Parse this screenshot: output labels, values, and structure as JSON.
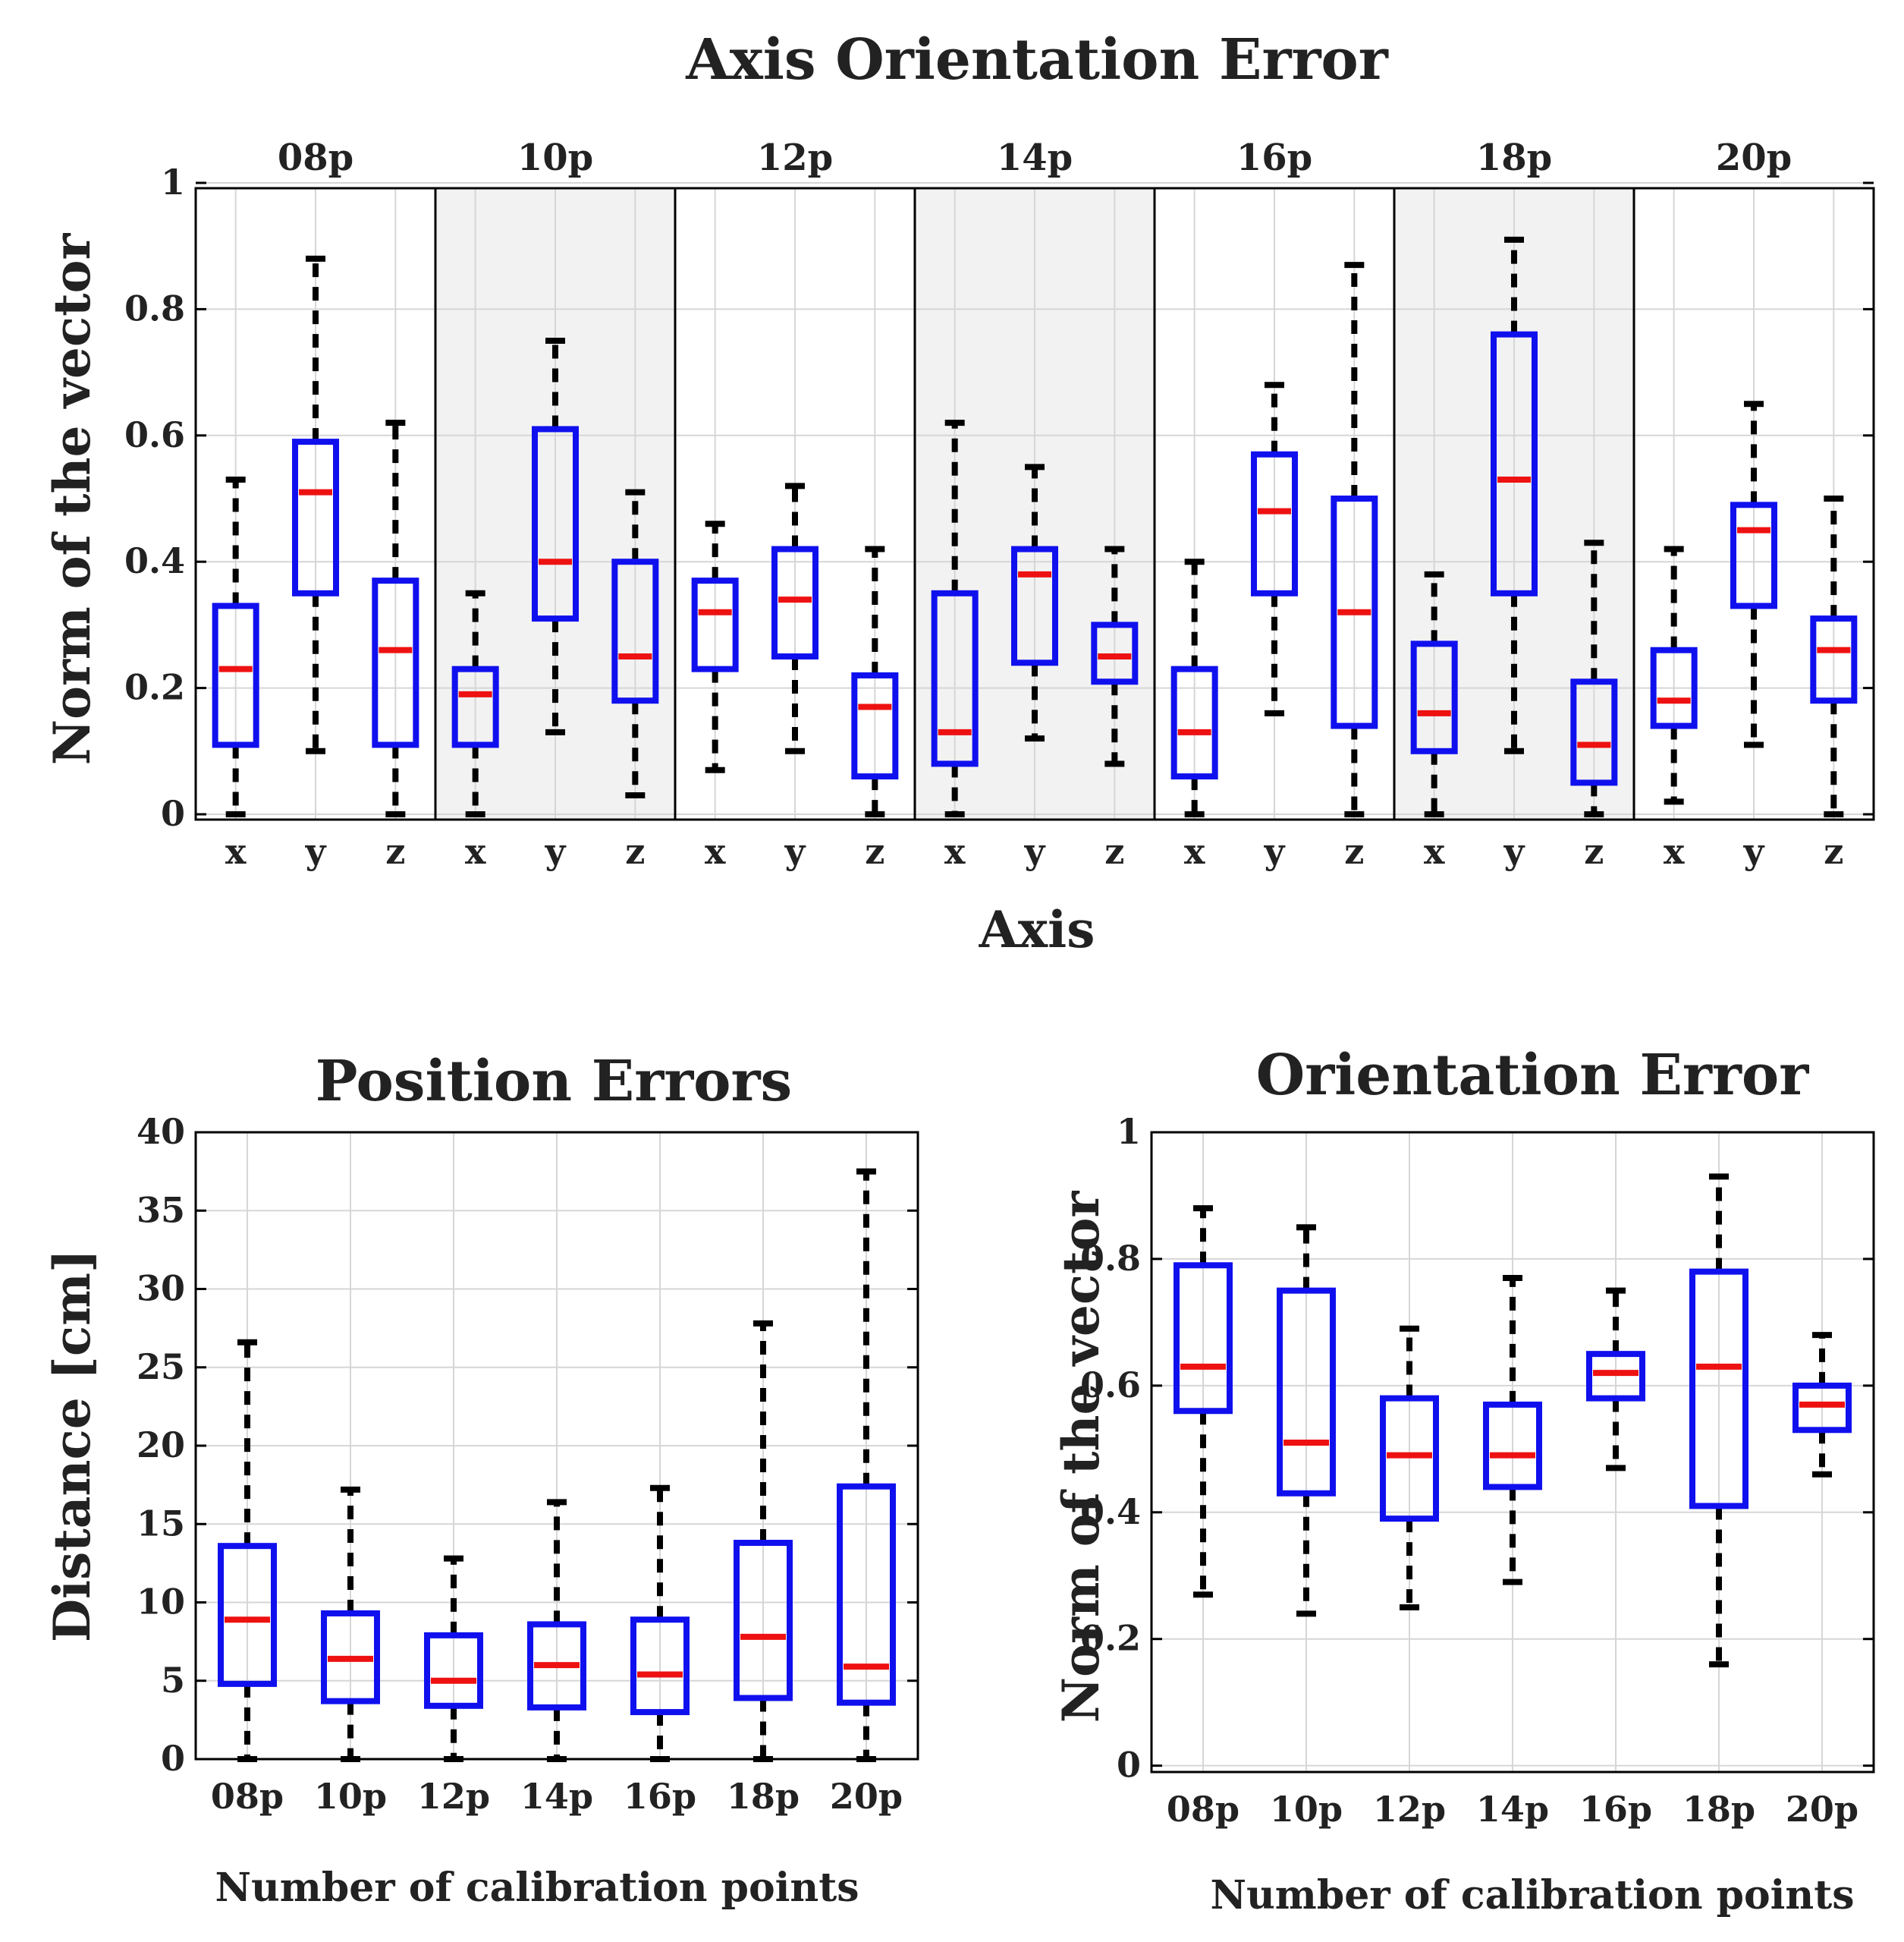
{
  "colors": {
    "box": "#1010ee",
    "median": "#ee1111",
    "whisker": "#000000",
    "grid": "#d6d6d6",
    "shade": "#f2f2f2"
  },
  "chart_data": [
    {
      "id": "top",
      "type": "boxplot",
      "title": "Axis Orientation Error",
      "xlabel": "Axis",
      "ylabel": "Norm of the vector",
      "ylim": [
        0,
        1
      ],
      "yticks": [
        0,
        0.2,
        0.4,
        0.6,
        0.8,
        1
      ],
      "ytick_labels": [
        "0",
        "0.2",
        "0.4",
        "0.6",
        "0.8",
        "1"
      ],
      "shaded_groups": [
        "10p",
        "14p",
        "18p"
      ],
      "groups": [
        {
          "label": "08p",
          "boxes": [
            {
              "cat": "x",
              "min": 0.0,
              "q1": 0.11,
              "median": 0.23,
              "q3": 0.33,
              "max": 0.53
            },
            {
              "cat": "y",
              "min": 0.1,
              "q1": 0.35,
              "median": 0.51,
              "q3": 0.59,
              "max": 0.88
            },
            {
              "cat": "z",
              "min": 0.0,
              "q1": 0.11,
              "median": 0.26,
              "q3": 0.37,
              "max": 0.62
            }
          ]
        },
        {
          "label": "10p",
          "boxes": [
            {
              "cat": "x",
              "min": 0.0,
              "q1": 0.11,
              "median": 0.19,
              "q3": 0.23,
              "max": 0.35
            },
            {
              "cat": "y",
              "min": 0.13,
              "q1": 0.31,
              "median": 0.4,
              "q3": 0.61,
              "max": 0.75
            },
            {
              "cat": "z",
              "min": 0.03,
              "q1": 0.18,
              "median": 0.25,
              "q3": 0.4,
              "max": 0.51
            }
          ]
        },
        {
          "label": "12p",
          "boxes": [
            {
              "cat": "x",
              "min": 0.07,
              "q1": 0.23,
              "median": 0.32,
              "q3": 0.37,
              "max": 0.46
            },
            {
              "cat": "y",
              "min": 0.1,
              "q1": 0.25,
              "median": 0.34,
              "q3": 0.42,
              "max": 0.52
            },
            {
              "cat": "z",
              "min": 0.0,
              "q1": 0.06,
              "median": 0.17,
              "q3": 0.22,
              "max": 0.42
            }
          ]
        },
        {
          "label": "14p",
          "boxes": [
            {
              "cat": "x",
              "min": 0.0,
              "q1": 0.08,
              "median": 0.13,
              "q3": 0.35,
              "max": 0.62
            },
            {
              "cat": "y",
              "min": 0.12,
              "q1": 0.24,
              "median": 0.38,
              "q3": 0.42,
              "max": 0.55
            },
            {
              "cat": "z",
              "min": 0.08,
              "q1": 0.21,
              "median": 0.25,
              "q3": 0.3,
              "max": 0.42
            }
          ]
        },
        {
          "label": "16p",
          "boxes": [
            {
              "cat": "x",
              "min": 0.0,
              "q1": 0.06,
              "median": 0.13,
              "q3": 0.23,
              "max": 0.4
            },
            {
              "cat": "y",
              "min": 0.16,
              "q1": 0.35,
              "median": 0.48,
              "q3": 0.57,
              "max": 0.68
            },
            {
              "cat": "z",
              "min": 0.0,
              "q1": 0.14,
              "median": 0.32,
              "q3": 0.5,
              "max": 0.87
            }
          ]
        },
        {
          "label": "18p",
          "boxes": [
            {
              "cat": "x",
              "min": 0.0,
              "q1": 0.1,
              "median": 0.16,
              "q3": 0.27,
              "max": 0.38
            },
            {
              "cat": "y",
              "min": 0.1,
              "q1": 0.35,
              "median": 0.53,
              "q3": 0.76,
              "max": 0.91
            },
            {
              "cat": "z",
              "min": 0.0,
              "q1": 0.05,
              "median": 0.11,
              "q3": 0.21,
              "max": 0.43
            }
          ]
        },
        {
          "label": "20p",
          "boxes": [
            {
              "cat": "x",
              "min": 0.02,
              "q1": 0.14,
              "median": 0.18,
              "q3": 0.26,
              "max": 0.42
            },
            {
              "cat": "y",
              "min": 0.11,
              "q1": 0.33,
              "median": 0.45,
              "q3": 0.49,
              "max": 0.65
            },
            {
              "cat": "z",
              "min": 0.0,
              "q1": 0.18,
              "median": 0.26,
              "q3": 0.31,
              "max": 0.5
            }
          ]
        }
      ]
    },
    {
      "id": "position",
      "type": "boxplot",
      "title": "Position Errors",
      "xlabel": "Number of calibration points",
      "ylabel": "Distance [cm]",
      "ylim": [
        0,
        40
      ],
      "yticks": [
        0,
        5,
        10,
        15,
        20,
        25,
        30,
        35,
        40
      ],
      "ytick_labels": [
        "0",
        "5",
        "10",
        "15",
        "20",
        "25",
        "30",
        "35",
        "40"
      ],
      "boxes": [
        {
          "cat": "08p",
          "min": 0.0,
          "q1": 4.8,
          "median": 8.9,
          "q3": 13.6,
          "max": 26.6
        },
        {
          "cat": "10p",
          "min": 0.0,
          "q1": 3.7,
          "median": 6.4,
          "q3": 9.3,
          "max": 17.2
        },
        {
          "cat": "12p",
          "min": 0.0,
          "q1": 3.4,
          "median": 5.0,
          "q3": 7.9,
          "max": 12.8
        },
        {
          "cat": "14p",
          "min": 0.0,
          "q1": 3.3,
          "median": 6.0,
          "q3": 8.6,
          "max": 16.4
        },
        {
          "cat": "16p",
          "min": 0.0,
          "q1": 3.0,
          "median": 5.4,
          "q3": 8.9,
          "max": 17.3
        },
        {
          "cat": "18p",
          "min": 0.0,
          "q1": 3.9,
          "median": 7.8,
          "q3": 13.8,
          "max": 27.8
        },
        {
          "cat": "20p",
          "min": 0.0,
          "q1": 3.6,
          "median": 5.9,
          "q3": 17.4,
          "max": 37.5
        }
      ]
    },
    {
      "id": "orientation",
      "type": "boxplot",
      "title": "Orientation Error",
      "xlabel": "Number of calibration points",
      "ylabel": "Norm of the vector",
      "ylim": [
        -0.01,
        1
      ],
      "yticks": [
        0,
        0.2,
        0.4,
        0.6,
        0.8,
        1
      ],
      "ytick_labels": [
        "0",
        "0.2",
        "0.4",
        "0.6",
        "0.8",
        "1"
      ],
      "boxes": [
        {
          "cat": "08p",
          "min": 0.27,
          "q1": 0.56,
          "median": 0.63,
          "q3": 0.79,
          "max": 0.88
        },
        {
          "cat": "10p",
          "min": 0.24,
          "q1": 0.43,
          "median": 0.51,
          "q3": 0.75,
          "max": 0.85
        },
        {
          "cat": "12p",
          "min": 0.25,
          "q1": 0.39,
          "median": 0.49,
          "q3": 0.58,
          "max": 0.69
        },
        {
          "cat": "14p",
          "min": 0.29,
          "q1": 0.44,
          "median": 0.49,
          "q3": 0.57,
          "max": 0.77
        },
        {
          "cat": "16p",
          "min": 0.47,
          "q1": 0.58,
          "median": 0.62,
          "q3": 0.65,
          "max": 0.75
        },
        {
          "cat": "18p",
          "min": 0.16,
          "q1": 0.41,
          "median": 0.63,
          "q3": 0.78,
          "max": 0.93
        },
        {
          "cat": "20p",
          "min": 0.46,
          "q1": 0.53,
          "median": 0.57,
          "q3": 0.6,
          "max": 0.68
        }
      ]
    }
  ]
}
